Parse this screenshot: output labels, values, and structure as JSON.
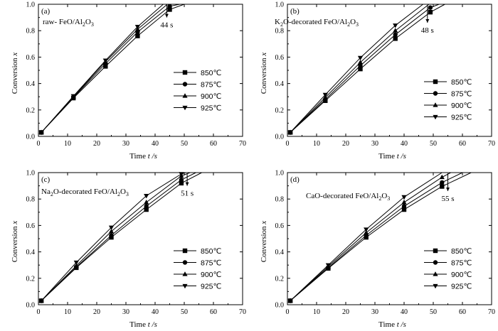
{
  "figure": {
    "temp_unit": "℃"
  },
  "chart_data": [
    {
      "type": "line",
      "panel_label": "(a)",
      "title_main": "raw- FeO/Al",
      "title_sub1": "2",
      "title_mid": "O",
      "title_sub2": "3",
      "title_tail": "",
      "xlabel": "Time",
      "xunit": "t /s",
      "ylabel": "Conversion",
      "yvar": "x",
      "xlim": [
        0,
        70
      ],
      "ylim": [
        0,
        1.0
      ],
      "xticks": [
        "0",
        "10",
        "20",
        "30",
        "40",
        "50",
        "60",
        "70"
      ],
      "yticks": [
        "0.0",
        "0.2",
        "0.4",
        "0.6",
        "0.8",
        "1.0"
      ],
      "legend_position": "center-right",
      "annotation": {
        "text": "44 s",
        "x": 44,
        "y_top": 0.995,
        "y_bottom": 0.9
      },
      "series": [
        {
          "name": "850℃",
          "marker": "square",
          "x": [
            1,
            12,
            23,
            34,
            45,
            50
          ],
          "y": [
            0.03,
            0.29,
            0.53,
            0.76,
            0.96,
            1.0
          ]
        },
        {
          "name": "875℃",
          "marker": "circle",
          "x": [
            1,
            12,
            23,
            34,
            45,
            48.5
          ],
          "y": [
            0.03,
            0.295,
            0.55,
            0.79,
            0.985,
            1.0
          ]
        },
        {
          "name": "900℃",
          "marker": "triangle-up",
          "x": [
            1,
            12,
            23,
            34,
            44.2
          ],
          "y": [
            0.03,
            0.3,
            0.565,
            0.81,
            1.0
          ]
        },
        {
          "name": "925℃",
          "marker": "triangle-down",
          "x": [
            1,
            12,
            23,
            34,
            42.8
          ],
          "y": [
            0.03,
            0.305,
            0.575,
            0.83,
            1.0
          ]
        }
      ]
    },
    {
      "type": "line",
      "panel_label": "(b)",
      "title_main": "K",
      "title_sub1": "2",
      "title_mid": "O-decorated FeO/Al",
      "title_sub2": "2",
      "title_tail": "O",
      "title_sub3": "3",
      "xlabel": "Time",
      "xunit": "t /s",
      "ylabel": "Conversion",
      "yvar": "x",
      "xlim": [
        0,
        70
      ],
      "ylim": [
        0,
        1.0
      ],
      "xticks": [
        "0",
        "10",
        "20",
        "30",
        "40",
        "50",
        "60",
        "70"
      ],
      "yticks": [
        "0.0",
        "0.2",
        "0.4",
        "0.6",
        "0.8",
        "1.0"
      ],
      "legend_position": "center-right",
      "annotation": {
        "text": "48 s",
        "x": 48,
        "y_top": 0.995,
        "y_bottom": 0.86
      },
      "series": [
        {
          "name": "850℃",
          "marker": "square",
          "x": [
            1,
            13,
            25,
            37,
            49,
            54
          ],
          "y": [
            0.03,
            0.27,
            0.51,
            0.74,
            0.94,
            1.0
          ]
        },
        {
          "name": "875℃",
          "marker": "circle",
          "x": [
            1,
            13,
            25,
            37,
            49,
            52
          ],
          "y": [
            0.03,
            0.28,
            0.535,
            0.77,
            0.975,
            1.0
          ]
        },
        {
          "name": "900℃",
          "marker": "triangle-up",
          "x": [
            1,
            13,
            25,
            37,
            48.5
          ],
          "y": [
            0.03,
            0.295,
            0.56,
            0.8,
            1.0
          ]
        },
        {
          "name": "925℃",
          "marker": "triangle-down",
          "x": [
            1,
            13,
            25,
            37,
            46.5
          ],
          "y": [
            0.03,
            0.315,
            0.595,
            0.84,
            1.0
          ]
        }
      ]
    },
    {
      "type": "line",
      "panel_label": "(c)",
      "title_main": "Na",
      "title_sub1": "2",
      "title_mid": "O-decorated FeO/Al",
      "title_sub2": "2",
      "title_tail": "O",
      "title_sub3": "3",
      "xlabel": "Time",
      "xunit": "t /s",
      "ylabel": "Conversion",
      "yvar": "x",
      "xlim": [
        0,
        70
      ],
      "ylim": [
        0,
        1.0
      ],
      "xticks": [
        "0",
        "10",
        "20",
        "30",
        "40",
        "50",
        "60",
        "70"
      ],
      "yticks": [
        "0.0",
        "0.2",
        "0.4",
        "0.6",
        "0.8",
        "1.0"
      ],
      "legend_position": "center-right",
      "annotation": {
        "text": "51 s",
        "x": 51,
        "y_top": 0.995,
        "y_bottom": 0.9
      },
      "series": [
        {
          "name": "850℃",
          "marker": "square",
          "x": [
            1,
            13,
            25,
            37,
            49,
            56
          ],
          "y": [
            0.03,
            0.28,
            0.51,
            0.72,
            0.92,
            1.0
          ]
        },
        {
          "name": "875℃",
          "marker": "circle",
          "x": [
            1,
            13,
            25,
            37,
            49,
            54
          ],
          "y": [
            0.03,
            0.285,
            0.525,
            0.745,
            0.945,
            1.0
          ]
        },
        {
          "name": "900℃",
          "marker": "triangle-up",
          "x": [
            1,
            13,
            25,
            37,
            49,
            52
          ],
          "y": [
            0.03,
            0.295,
            0.555,
            0.775,
            0.975,
            1.0
          ]
        },
        {
          "name": "925℃",
          "marker": "triangle-down",
          "x": [
            1,
            13,
            25,
            37,
            49,
            50.5
          ],
          "y": [
            0.03,
            0.32,
            0.585,
            0.825,
            0.99,
            1.0
          ]
        }
      ]
    },
    {
      "type": "line",
      "panel_label": "(d)",
      "title_main": "CaO-decorated FeO/Al",
      "title_sub1": "2",
      "title_mid": "O",
      "title_sub2": "3",
      "title_tail": "",
      "xlabel": "Time",
      "xunit": "t /s",
      "ylabel": "Conversion",
      "yvar": "x",
      "xlim": [
        0,
        70
      ],
      "ylim": [
        0,
        1.0
      ],
      "xticks": [
        "0",
        "10",
        "20",
        "30",
        "40",
        "50",
        "60",
        "70"
      ],
      "yticks": [
        "0.0",
        "0.2",
        "0.4",
        "0.6",
        "0.8",
        "1.0"
      ],
      "legend_position": "center-right",
      "annotation": {
        "text": "55 s",
        "x": 55,
        "y_top": 0.995,
        "y_bottom": 0.86
      },
      "series": [
        {
          "name": "850℃",
          "marker": "square",
          "x": [
            1,
            14,
            27,
            40,
            53,
            63
          ],
          "y": [
            0.03,
            0.275,
            0.51,
            0.72,
            0.895,
            1.0
          ]
        },
        {
          "name": "875℃",
          "marker": "circle",
          "x": [
            1,
            14,
            27,
            40,
            53,
            60
          ],
          "y": [
            0.03,
            0.28,
            0.525,
            0.745,
            0.925,
            1.0
          ]
        },
        {
          "name": "900℃",
          "marker": "triangle-up",
          "x": [
            1,
            14,
            27,
            40,
            53,
            56
          ],
          "y": [
            0.03,
            0.29,
            0.545,
            0.775,
            0.965,
            1.0
          ]
        },
        {
          "name": "925℃",
          "marker": "triangle-down",
          "x": [
            1,
            14,
            27,
            40,
            53
          ],
          "y": [
            0.03,
            0.3,
            0.57,
            0.815,
            1.0
          ]
        }
      ]
    }
  ]
}
